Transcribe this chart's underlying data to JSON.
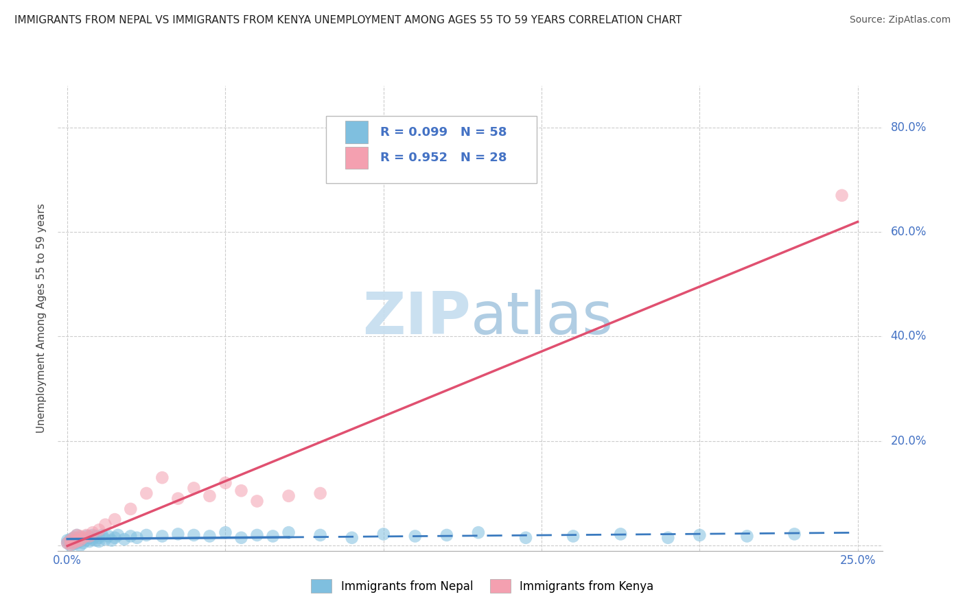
{
  "title": "IMMIGRANTS FROM NEPAL VS IMMIGRANTS FROM KENYA UNEMPLOYMENT AMONG AGES 55 TO 59 YEARS CORRELATION CHART",
  "source": "Source: ZipAtlas.com",
  "ylabel": "Unemployment Among Ages 55 to 59 years",
  "xlim": [
    -0.003,
    0.258
  ],
  "ylim": [
    -0.01,
    0.88
  ],
  "xtick_positions": [
    0.0,
    0.05,
    0.1,
    0.15,
    0.2,
    0.25
  ],
  "xticklabels": [
    "0.0%",
    "",
    "",
    "",
    "",
    "25.0%"
  ],
  "ytick_positions": [
    0.0,
    0.2,
    0.4,
    0.6,
    0.8
  ],
  "yticklabels": [
    "",
    "20.0%",
    "40.0%",
    "60.0%",
    "80.0%"
  ],
  "nepal_R": 0.099,
  "nepal_N": 58,
  "kenya_R": 0.952,
  "kenya_N": 28,
  "nepal_color": "#7fbfdf",
  "kenya_color": "#f4a0b0",
  "nepal_line_color": "#3a7abf",
  "kenya_line_color": "#e05070",
  "tick_color": "#4472c4",
  "watermark_color": "#c5ddef",
  "background_color": "#ffffff",
  "grid_color": "#cccccc",
  "title_fontsize": 11,
  "axis_label_fontsize": 11,
  "tick_fontsize": 12,
  "legend_R_N_color": "#4472c4",
  "nepal_scatter_x": [
    0.0,
    0.0,
    0.001,
    0.001,
    0.001,
    0.002,
    0.002,
    0.002,
    0.003,
    0.003,
    0.003,
    0.004,
    0.004,
    0.004,
    0.005,
    0.005,
    0.006,
    0.006,
    0.007,
    0.007,
    0.008,
    0.008,
    0.009,
    0.009,
    0.01,
    0.01,
    0.011,
    0.012,
    0.013,
    0.014,
    0.015,
    0.016,
    0.018,
    0.02,
    0.022,
    0.025,
    0.03,
    0.035,
    0.04,
    0.045,
    0.05,
    0.055,
    0.06,
    0.065,
    0.07,
    0.08,
    0.09,
    0.1,
    0.11,
    0.12,
    0.13,
    0.145,
    0.16,
    0.175,
    0.19,
    0.2,
    0.215,
    0.23
  ],
  "nepal_scatter_y": [
    0.005,
    0.01,
    0.0,
    0.008,
    0.012,
    0.003,
    0.007,
    0.015,
    0.005,
    0.01,
    0.02,
    0.0,
    0.008,
    0.015,
    0.005,
    0.012,
    0.01,
    0.018,
    0.008,
    0.015,
    0.012,
    0.02,
    0.01,
    0.018,
    0.008,
    0.015,
    0.02,
    0.012,
    0.018,
    0.01,
    0.015,
    0.02,
    0.012,
    0.018,
    0.015,
    0.02,
    0.018,
    0.022,
    0.02,
    0.018,
    0.025,
    0.015,
    0.02,
    0.018,
    0.025,
    0.02,
    0.015,
    0.022,
    0.018,
    0.02,
    0.025,
    0.015,
    0.018,
    0.022,
    0.015,
    0.02,
    0.018,
    0.022
  ],
  "kenya_scatter_x": [
    0.0,
    0.001,
    0.001,
    0.002,
    0.002,
    0.003,
    0.003,
    0.004,
    0.004,
    0.005,
    0.006,
    0.007,
    0.008,
    0.01,
    0.012,
    0.015,
    0.02,
    0.025,
    0.03,
    0.035,
    0.04,
    0.045,
    0.05,
    0.055,
    0.06,
    0.07,
    0.08,
    0.245
  ],
  "kenya_scatter_y": [
    0.005,
    0.002,
    0.01,
    0.005,
    0.015,
    0.008,
    0.02,
    0.01,
    0.018,
    0.015,
    0.02,
    0.018,
    0.025,
    0.03,
    0.04,
    0.05,
    0.07,
    0.1,
    0.13,
    0.09,
    0.11,
    0.095,
    0.12,
    0.105,
    0.085,
    0.095,
    0.1,
    0.67
  ]
}
